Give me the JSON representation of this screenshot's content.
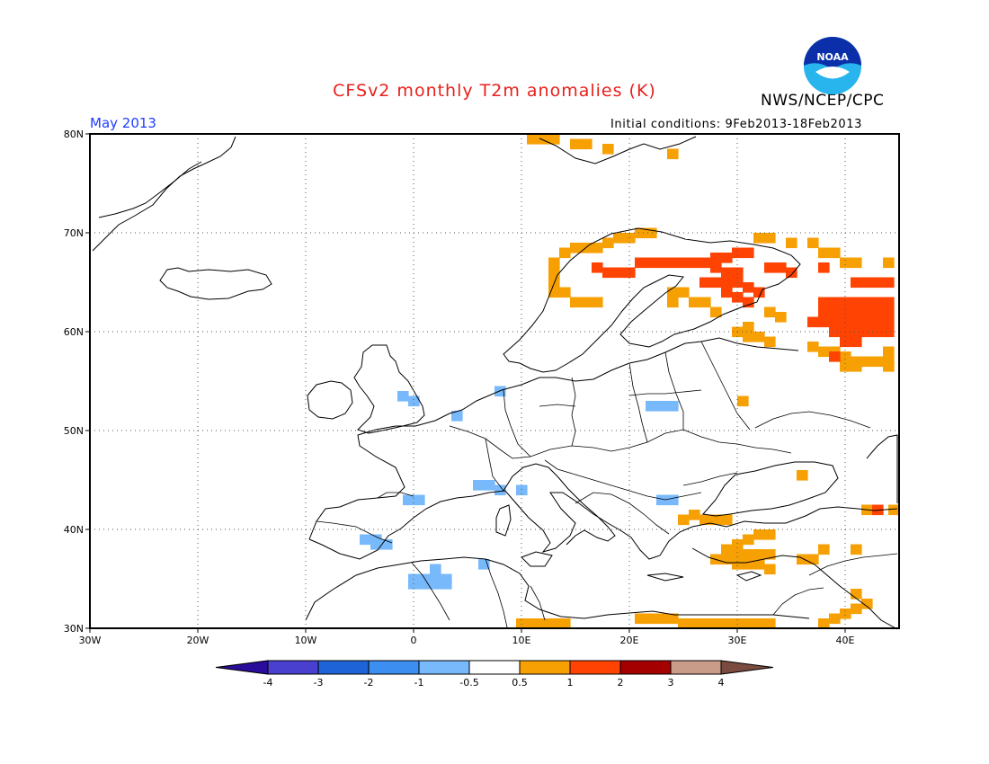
{
  "header": {
    "title": "CFSv2 monthly T2m anomalies (K)",
    "agency": "NWS/NCEP/CPC",
    "logo_text": "NOAA",
    "month": "May 2013",
    "initial_conditions": "Initial conditions: 9Feb2013-18Feb2013"
  },
  "map": {
    "lon_range": [
      -30,
      45
    ],
    "lat_range": [
      30,
      80
    ],
    "lat_labels": [
      "80N",
      "70N",
      "60N",
      "50N",
      "40N",
      "30N"
    ],
    "lon_labels": [
      "30W",
      "20W",
      "10W",
      "0",
      "10E",
      "20E",
      "30E",
      "40E"
    ],
    "grid": "dotted",
    "anomaly_cells_lon_lat": [
      {
        "range": "0.5 to 1",
        "color": "#f7a003",
        "cells": [
          [
            11,
            79.5
          ],
          [
            12,
            79.5
          ],
          [
            13,
            79.5
          ],
          [
            15,
            79
          ],
          [
            16,
            79
          ],
          [
            18,
            78.5
          ],
          [
            24,
            78
          ],
          [
            21,
            70
          ],
          [
            22,
            70
          ],
          [
            19,
            69.5
          ],
          [
            20,
            69.5
          ],
          [
            18,
            69
          ],
          [
            15,
            68.5
          ],
          [
            16,
            68.5
          ],
          [
            17,
            68.5
          ],
          [
            14,
            68
          ],
          [
            13,
            67
          ],
          [
            13,
            66
          ],
          [
            13,
            65
          ],
          [
            13,
            64
          ],
          [
            14,
            64
          ],
          [
            15,
            63
          ],
          [
            16,
            63
          ],
          [
            17,
            63
          ],
          [
            32,
            69.5
          ],
          [
            33,
            69.5
          ],
          [
            35,
            69
          ],
          [
            37,
            69
          ],
          [
            38,
            68
          ],
          [
            39,
            68
          ],
          [
            40,
            67
          ],
          [
            41,
            67
          ],
          [
            44,
            67
          ],
          [
            24,
            64
          ],
          [
            25,
            64
          ],
          [
            24,
            63
          ],
          [
            26,
            63
          ],
          [
            27,
            63
          ],
          [
            28,
            62
          ],
          [
            33,
            62
          ],
          [
            34,
            61.5
          ],
          [
            31,
            60.5
          ],
          [
            30,
            60
          ],
          [
            31,
            59.5
          ],
          [
            32,
            59.5
          ],
          [
            33,
            59
          ],
          [
            37,
            58.5
          ],
          [
            38,
            58
          ],
          [
            39,
            58
          ],
          [
            40,
            57.5
          ],
          [
            41,
            57
          ],
          [
            42,
            57
          ],
          [
            43,
            57
          ],
          [
            44,
            57
          ],
          [
            44,
            58
          ],
          [
            44,
            56.5
          ],
          [
            40,
            56.5
          ],
          [
            41,
            56.5
          ],
          [
            30.5,
            53
          ],
          [
            36,
            45.5
          ],
          [
            26,
            41.5
          ],
          [
            27,
            41
          ],
          [
            28,
            41
          ],
          [
            29,
            41
          ],
          [
            25,
            41
          ],
          [
            32,
            39.5
          ],
          [
            33,
            39.5
          ],
          [
            31,
            39
          ],
          [
            30,
            38.5
          ],
          [
            29,
            38
          ],
          [
            30,
            37.5
          ],
          [
            31,
            37.5
          ],
          [
            32,
            37.5
          ],
          [
            33,
            37.5
          ],
          [
            28,
            37
          ],
          [
            29,
            37
          ],
          [
            30,
            36.5
          ],
          [
            31,
            36.5
          ],
          [
            32,
            36.5
          ],
          [
            33,
            36
          ],
          [
            36,
            37
          ],
          [
            37,
            37
          ],
          [
            38,
            38
          ],
          [
            41,
            38
          ],
          [
            42,
            42
          ],
          [
            44.5,
            42
          ],
          [
            10,
            30.5
          ],
          [
            11,
            30.5
          ],
          [
            12,
            30.5
          ],
          [
            13,
            30.5
          ],
          [
            14,
            30.5
          ],
          [
            21,
            31
          ],
          [
            22,
            31
          ],
          [
            23,
            31
          ],
          [
            24,
            31
          ],
          [
            25,
            30.5
          ],
          [
            26,
            30.5
          ],
          [
            27,
            30.5
          ],
          [
            28,
            30.5
          ],
          [
            29,
            30.5
          ],
          [
            30,
            30.5
          ],
          [
            31,
            30.5
          ],
          [
            32,
            30.5
          ],
          [
            33,
            30.5
          ],
          [
            38,
            30.5
          ],
          [
            39,
            31
          ],
          [
            40,
            31.5
          ],
          [
            41,
            32
          ],
          [
            42,
            32.5
          ],
          [
            41,
            33.5
          ]
        ]
      },
      {
        "range": "1 to 2",
        "color": "#fe4303",
        "cells": [
          [
            17,
            66.5
          ],
          [
            18,
            66
          ],
          [
            19,
            66
          ],
          [
            20,
            66
          ],
          [
            21,
            67
          ],
          [
            22,
            67
          ],
          [
            23,
            67
          ],
          [
            24,
            67
          ],
          [
            25,
            67
          ],
          [
            26,
            67
          ],
          [
            27,
            67
          ],
          [
            28,
            67.5
          ],
          [
            29,
            67.5
          ],
          [
            30,
            68
          ],
          [
            31,
            68
          ],
          [
            28,
            66.5
          ],
          [
            29,
            66
          ],
          [
            30,
            66
          ],
          [
            27,
            65
          ],
          [
            28,
            65
          ],
          [
            29,
            65
          ],
          [
            30,
            65
          ],
          [
            31,
            64.5
          ],
          [
            32,
            64
          ],
          [
            29,
            64
          ],
          [
            30,
            63.5
          ],
          [
            31,
            63
          ],
          [
            33,
            66.5
          ],
          [
            34,
            66.5
          ],
          [
            35,
            66
          ],
          [
            38,
            66.5
          ],
          [
            41,
            65
          ],
          [
            42,
            65
          ],
          [
            43,
            65
          ],
          [
            44,
            65
          ],
          [
            38,
            63
          ],
          [
            39,
            63
          ],
          [
            40,
            63
          ],
          [
            41,
            63
          ],
          [
            42,
            63
          ],
          [
            43,
            63
          ],
          [
            44,
            63
          ],
          [
            38,
            62
          ],
          [
            39,
            62
          ],
          [
            40,
            62
          ],
          [
            41,
            62
          ],
          [
            42,
            62
          ],
          [
            43,
            62
          ],
          [
            44,
            62
          ],
          [
            37,
            61
          ],
          [
            38,
            61
          ],
          [
            39,
            61
          ],
          [
            40,
            61
          ],
          [
            41,
            61
          ],
          [
            42,
            61
          ],
          [
            43,
            61
          ],
          [
            44,
            61
          ],
          [
            39,
            60
          ],
          [
            40,
            60
          ],
          [
            41,
            60
          ],
          [
            42,
            60
          ],
          [
            43,
            60
          ],
          [
            44,
            60
          ],
          [
            40,
            59
          ],
          [
            41,
            59
          ],
          [
            39,
            57.5
          ],
          [
            43,
            42
          ]
        ]
      },
      {
        "range": "-1 to -0.5",
        "color": "#77b9fa",
        "cells": [
          [
            -1,
            53.5
          ],
          [
            0,
            53
          ],
          [
            4,
            51.5
          ],
          [
            8,
            54
          ],
          [
            22,
            52.5
          ],
          [
            23,
            52.5
          ],
          [
            24,
            52.5
          ],
          [
            -0.5,
            43
          ],
          [
            0.5,
            43
          ],
          [
            6,
            44.5
          ],
          [
            7,
            44.5
          ],
          [
            8,
            44
          ],
          [
            10,
            44
          ],
          [
            23,
            43
          ],
          [
            24,
            43
          ],
          [
            -4.5,
            39
          ],
          [
            -3.5,
            39
          ],
          [
            -2.5,
            38.5
          ],
          [
            -3.5,
            38.5
          ],
          [
            0,
            35
          ],
          [
            1,
            35
          ],
          [
            2,
            35
          ],
          [
            3,
            35
          ],
          [
            0,
            34.5
          ],
          [
            1,
            34.5
          ],
          [
            2,
            34.5
          ],
          [
            3,
            34.5
          ],
          [
            2,
            36
          ],
          [
            6.5,
            36.5
          ]
        ]
      }
    ]
  },
  "legend": {
    "labels": [
      "-4",
      "-3",
      "-2",
      "-1",
      "-0.5",
      "0.5",
      "1",
      "2",
      "3",
      "4"
    ],
    "colors": [
      "#2a0d9a",
      "#4a40d0",
      "#1f63d8",
      "#3c8ef0",
      "#77b9fa",
      "#ffffff",
      "#f7a003",
      "#fe4303",
      "#a50000",
      "#c99c8a",
      "#7a4b3e"
    ]
  }
}
